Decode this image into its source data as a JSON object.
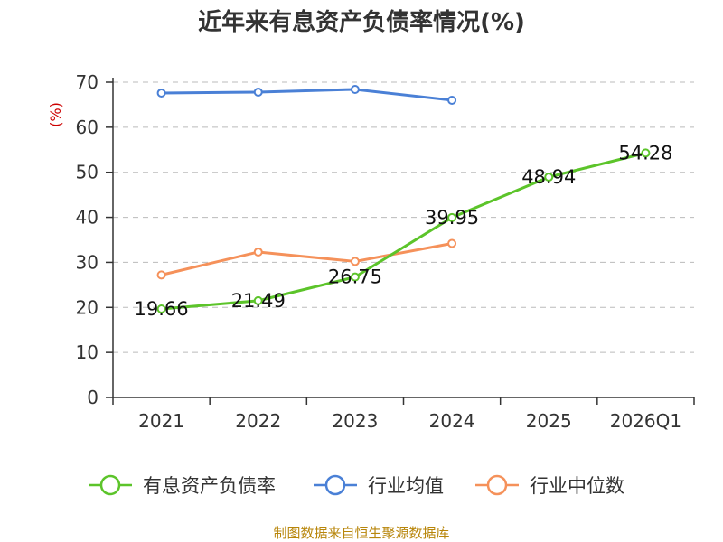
{
  "chart_data": {
    "type": "line",
    "title": "近年来有息资产负债率情况(%)",
    "ylabel": "(%)",
    "xlabel": "",
    "ylim": [
      0,
      70
    ],
    "yticks": [
      0,
      10,
      20,
      30,
      40,
      50,
      60,
      70
    ],
    "categories": [
      "2021",
      "2022",
      "2023",
      "2024",
      "2025",
      "2026Q1"
    ],
    "grid": true,
    "legend_position": "bottom",
    "series": [
      {
        "name": "有息资产负债率",
        "color": "#5cc42a",
        "show_labels": true,
        "values": [
          19.66,
          21.49,
          26.75,
          39.95,
          48.94,
          54.28
        ]
      },
      {
        "name": "行业均值",
        "color": "#4a80d6",
        "show_labels": false,
        "values": [
          67.6,
          67.8,
          68.4,
          66.0,
          null,
          null
        ]
      },
      {
        "name": "行业中位数",
        "color": "#f5915a",
        "show_labels": false,
        "values": [
          27.2,
          32.3,
          30.2,
          34.2,
          null,
          null
        ]
      }
    ],
    "data_labels": [
      "19.66",
      "21.49",
      "26.75",
      "39.95",
      "48.94",
      "54.28"
    ]
  },
  "source": "制图数据来自恒生聚源数据库"
}
